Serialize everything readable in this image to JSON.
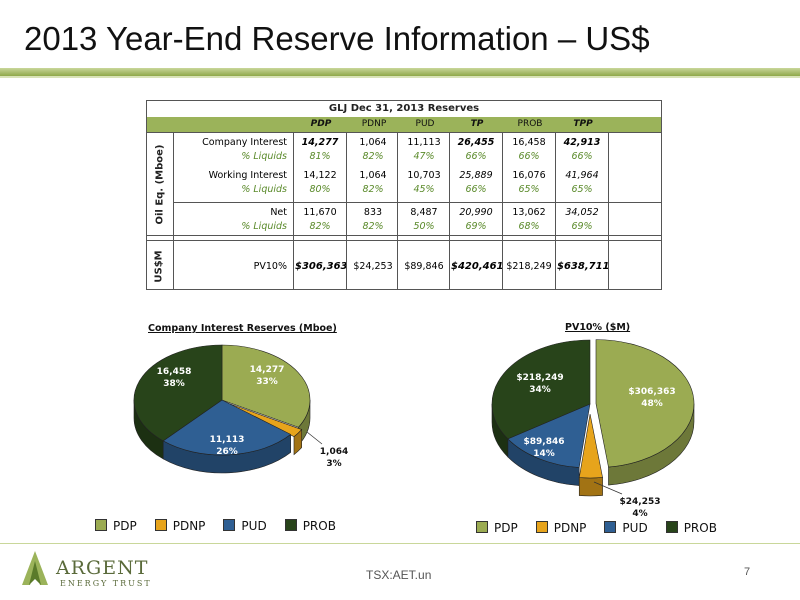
{
  "title": "2013 Year-End Reserve Information – US$",
  "table": {
    "header": "GLJ Dec 31, 2013 Reserves",
    "columns": [
      "PDP",
      "PDNP",
      "PUD",
      "TP",
      "PROB",
      "TPP"
    ],
    "side_label_oil": "Oil Eq. (Mboe)",
    "side_label_usd": "US$M",
    "rows": [
      {
        "label": "Company Interest",
        "values": [
          "14,277",
          "1,064",
          "11,113",
          "26,455",
          "16,458",
          "42,913"
        ]
      },
      {
        "label": "% Liquids",
        "values": [
          "81%",
          "82%",
          "47%",
          "66%",
          "66%",
          "66%"
        ]
      },
      {
        "label": "Working Interest",
        "values": [
          "14,122",
          "1,064",
          "10,703",
          "25,889",
          "16,076",
          "41,964"
        ]
      },
      {
        "label": "% Liquids",
        "values": [
          "80%",
          "82%",
          "45%",
          "66%",
          "65%",
          "65%"
        ]
      },
      {
        "label": "Net",
        "values": [
          "11,670",
          "833",
          "8,487",
          "20,990",
          "13,062",
          "34,052"
        ]
      },
      {
        "label": "% Liquids",
        "values": [
          "82%",
          "82%",
          "50%",
          "69%",
          "68%",
          "69%"
        ]
      },
      {
        "label": "PV10%",
        "values": [
          "$306,363",
          "$24,253",
          "$89,846",
          "$420,461",
          "$218,249",
          "$638,711"
        ]
      }
    ]
  },
  "chart_data": [
    {
      "type": "pie",
      "title": "Company Interest Reserves (Mboe)",
      "categories": [
        "PDP",
        "PDNP",
        "PUD",
        "PROB"
      ],
      "values": [
        14277,
        1064,
        11113,
        16458
      ],
      "labels": [
        "14,277",
        "1,064",
        "11,113",
        "16,458"
      ],
      "percents": [
        "33%",
        "3%",
        "26%",
        "38%"
      ],
      "colors": [
        "#9bab52",
        "#e7a41c",
        "#2f5f93",
        "#28441a"
      ],
      "legend": "bottom"
    },
    {
      "type": "pie",
      "title": "PV10% ($M)",
      "categories": [
        "PDP",
        "PDNP",
        "PUD",
        "PROB"
      ],
      "values": [
        306363,
        24253,
        89846,
        218249
      ],
      "labels": [
        "$306,363",
        "$24,253",
        "$89,846",
        "$218,249"
      ],
      "percents": [
        "48%",
        "4%",
        "14%",
        "34%"
      ],
      "colors": [
        "#9bab52",
        "#e7a41c",
        "#2f5f93",
        "#28441a"
      ],
      "legend": "bottom"
    }
  ],
  "footer": {
    "logo_name": "ARGENT",
    "logo_sub": "ENERGY TRUST",
    "ticker": "TSX:AET.un",
    "page": "7"
  }
}
